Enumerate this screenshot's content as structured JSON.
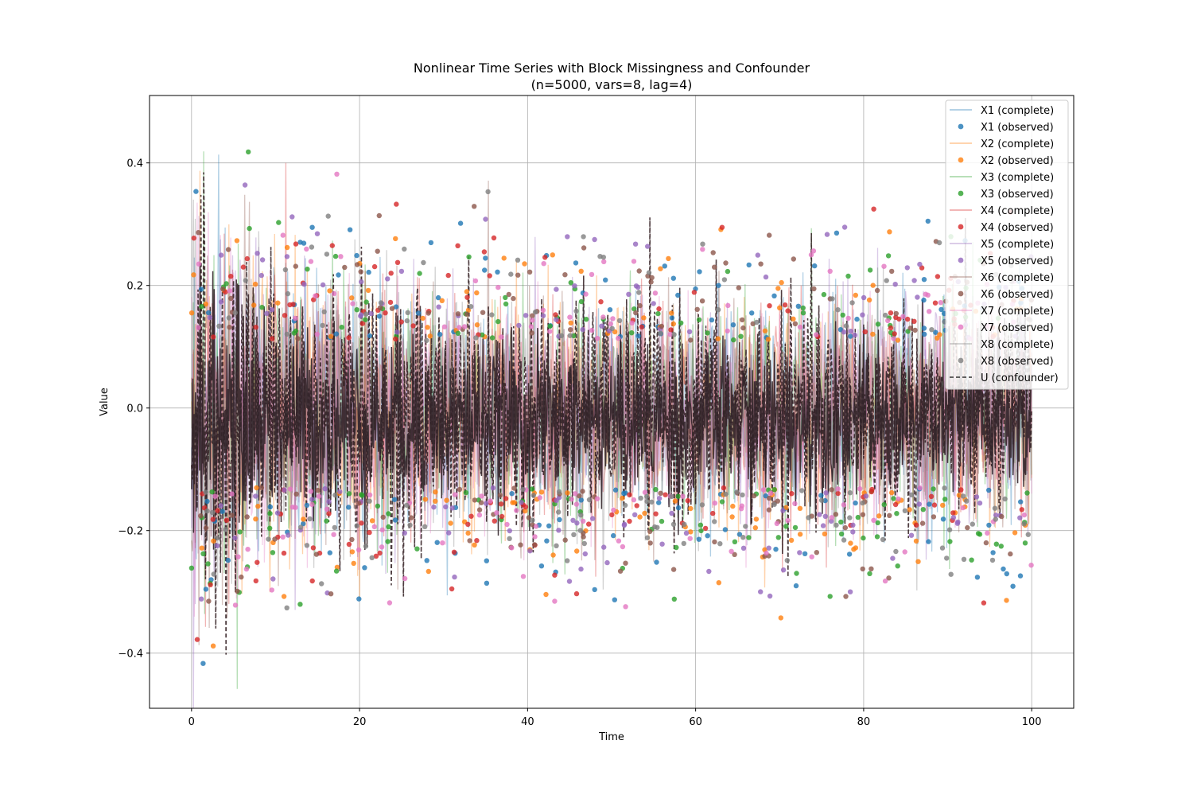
{
  "chart_data": {
    "type": "line",
    "title": "Nonlinear Time Series with Block Missingness and Confounder",
    "subtitle": "(n=5000, vars=8, lag=4)",
    "xlabel": "Time",
    "ylabel": "Value",
    "xlim": [
      -5,
      105
    ],
    "ylim": [
      -0.49,
      0.51
    ],
    "x_ticks": [
      0,
      20,
      40,
      60,
      80,
      100
    ],
    "y_ticks": [
      -0.4,
      -0.2,
      0.0,
      0.2,
      0.4
    ],
    "x_tick_labels": [
      "0",
      "20",
      "40",
      "60",
      "80",
      "100"
    ],
    "y_tick_labels": [
      "−0.4",
      "−0.2",
      "0.0",
      "0.2",
      "0.4"
    ],
    "grid": true,
    "legend_position": "top-right",
    "x_range": [
      0,
      100
    ],
    "series": [
      {
        "name": "X1 (complete)",
        "kind": "line",
        "color": "#1f77b4"
      },
      {
        "name": "X1 (observed)",
        "kind": "scatter",
        "color": "#1f77b4"
      },
      {
        "name": "X2 (complete)",
        "kind": "line",
        "color": "#ff7f0e"
      },
      {
        "name": "X2 (observed)",
        "kind": "scatter",
        "color": "#ff7f0e"
      },
      {
        "name": "X3 (complete)",
        "kind": "line",
        "color": "#2ca02c"
      },
      {
        "name": "X3 (observed)",
        "kind": "scatter",
        "color": "#2ca02c"
      },
      {
        "name": "X4 (complete)",
        "kind": "line",
        "color": "#d62728"
      },
      {
        "name": "X4 (observed)",
        "kind": "scatter",
        "color": "#d62728"
      },
      {
        "name": "X5 (complete)",
        "kind": "line",
        "color": "#9467bd"
      },
      {
        "name": "X5 (observed)",
        "kind": "scatter",
        "color": "#9467bd"
      },
      {
        "name": "X6 (complete)",
        "kind": "line",
        "color": "#8c564b"
      },
      {
        "name": "X6 (observed)",
        "kind": "scatter",
        "color": "#8c564b"
      },
      {
        "name": "X7 (complete)",
        "kind": "line",
        "color": "#e377c2"
      },
      {
        "name": "X7 (observed)",
        "kind": "scatter",
        "color": "#e377c2"
      },
      {
        "name": "X8 (complete)",
        "kind": "line",
        "color": "#7f7f7f"
      },
      {
        "name": "X8 (observed)",
        "kind": "scatter",
        "color": "#7f7f7f"
      },
      {
        "name": "U (confounder)",
        "kind": "dashed-line",
        "color": "#000000"
      }
    ]
  }
}
